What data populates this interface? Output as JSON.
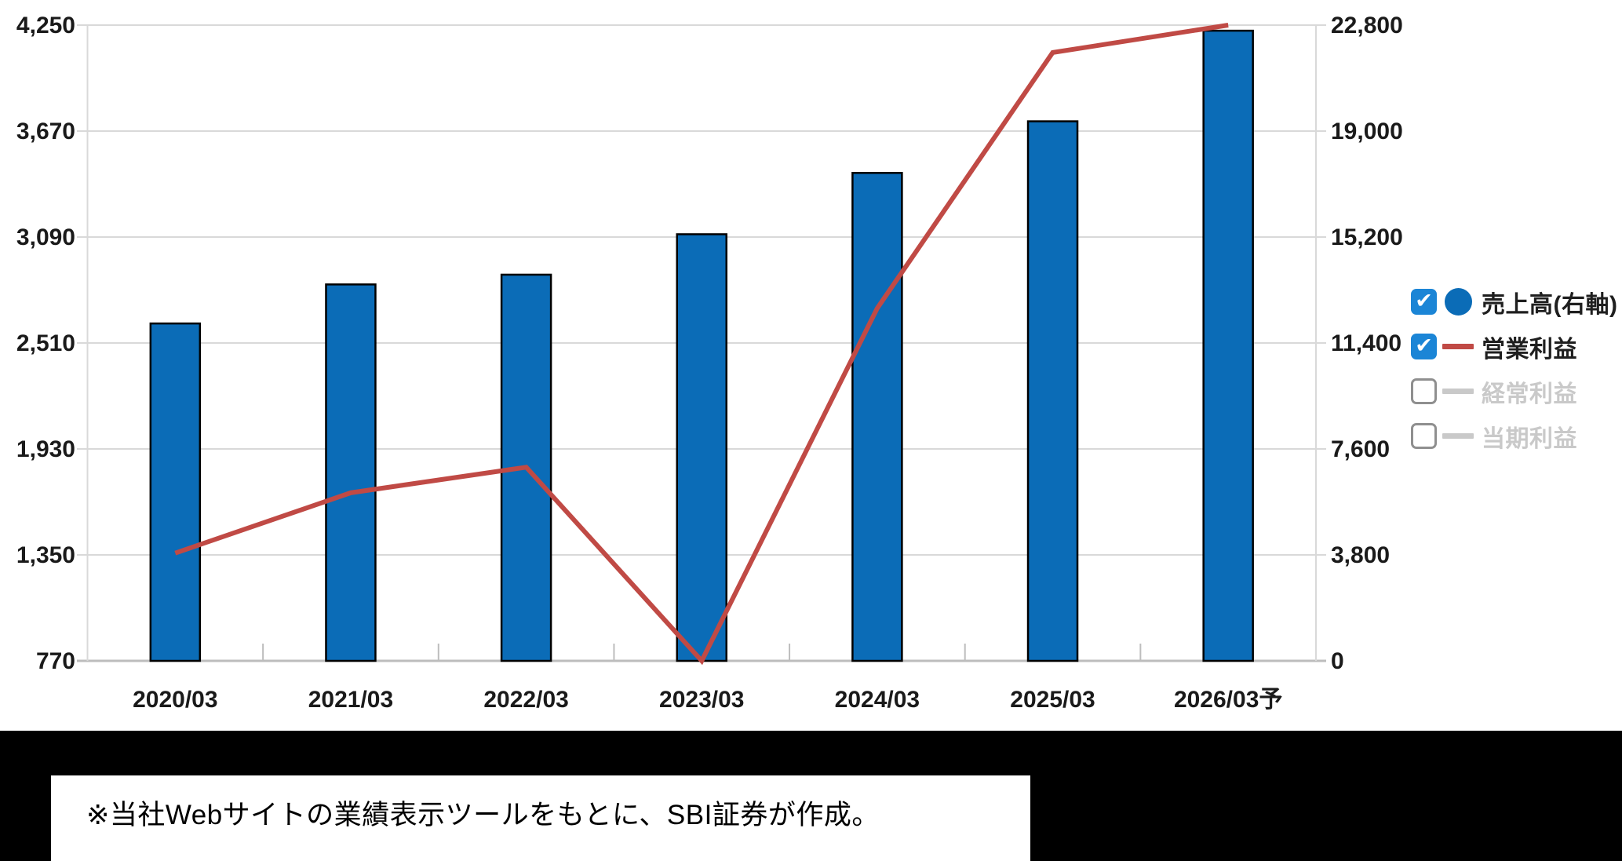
{
  "note": {
    "text": "※当社Webサイトの業績表示ツールをもとに、SBI証券が作成。"
  },
  "chart_data": {
    "type": "bar",
    "subtype": "combo-bar-line",
    "title": "",
    "categories": [
      "2020/03",
      "2021/03",
      "2022/03",
      "2023/03",
      "2024/03",
      "2025/03",
      "2026/03予"
    ],
    "series": [
      {
        "name": "売上高(右軸)",
        "type": "bar",
        "axis": "right",
        "values": [
          12100,
          13500,
          13850,
          15300,
          17500,
          19350,
          22600
        ]
      },
      {
        "name": "営業利益",
        "type": "line",
        "axis": "left",
        "values": [
          1360,
          1690,
          1830,
          770,
          2700,
          4100,
          4250
        ]
      }
    ],
    "left_axis": {
      "min": 770,
      "max": 4250,
      "tick_values": [
        4250,
        3670,
        3090,
        2510,
        1930,
        1350,
        770
      ],
      "tick_labels": [
        "4,250",
        "3,670",
        "3,090",
        "2,510",
        "1,930",
        "1,350",
        "770"
      ]
    },
    "right_axis": {
      "min": 0,
      "max": 22800,
      "tick_values": [
        22800,
        19000,
        15200,
        11400,
        7600,
        3800,
        0
      ],
      "tick_labels": [
        "22,800",
        "19,000",
        "15,200",
        "11,400",
        "7,600",
        "3,800",
        "0"
      ]
    },
    "grid": true,
    "legend_position": "right"
  },
  "legend": {
    "items": [
      {
        "label": "売上高(右軸)",
        "checked": true,
        "swatch": "circle",
        "color": "#0b6cb7",
        "text_color": "#1f1f1f"
      },
      {
        "label": "営業利益",
        "checked": true,
        "swatch": "line",
        "color": "#c04a45",
        "text_color": "#1f1f1f"
      },
      {
        "label": "経常利益",
        "checked": false,
        "swatch": "line",
        "color": "#c9c9c9",
        "text_color": "#c9c9c9"
      },
      {
        "label": "当期利益",
        "checked": false,
        "swatch": "line",
        "color": "#c9c9c9",
        "text_color": "#c9c9c9"
      }
    ]
  },
  "colors": {
    "bar_fill": "#0b6cb7",
    "bar_border": "#000000",
    "line": "#c04a45",
    "grid": "#d9d9d9",
    "axis": "#bdbdbd",
    "tick_text": "#1a1a1a",
    "background": "#ffffff",
    "bottom_background": "#000000"
  }
}
